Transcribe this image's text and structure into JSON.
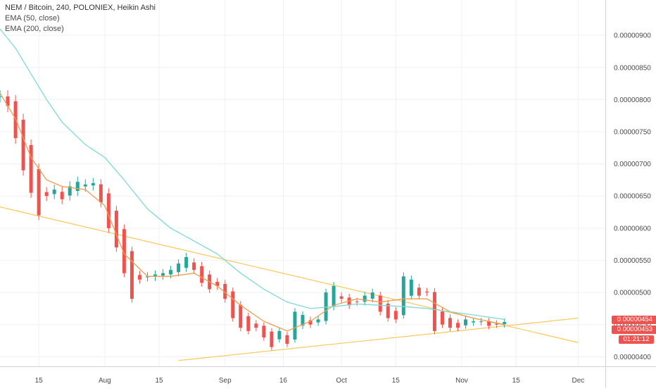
{
  "header": {
    "title": "NEM / Bitcoin, 240, POLONIEX, Heikin Ashi",
    "indicators": [
      "EMA (50, close)",
      "EMA (200, close)"
    ]
  },
  "price_badges": [
    {
      "label": "0.00000454",
      "color": "#ef5350"
    },
    {
      "label": "0.00000453",
      "color": "#ef5350"
    }
  ],
  "timer_label": "01:21:12",
  "colors": {
    "up": "#26a69a",
    "down": "#ef5350",
    "ema50": "#f39c4a",
    "ema200": "#7fd8d6",
    "trendline": "#ffc759",
    "grid": "#eef0f3",
    "axis_text": "#4a4a4a",
    "badge_red": "#ef5350"
  },
  "chart_data": {
    "type": "line",
    "title": "NEM / Bitcoin, 240, POLONIEX, Heikin Ashi",
    "xlabel": "",
    "ylabel": "",
    "x_tick_labels": [
      "15",
      "Aug",
      "15",
      "Sep",
      "16",
      "Oct",
      "15",
      "Nov",
      "15",
      "Dec"
    ],
    "x_tick_dates": [
      "2018-07-15",
      "2018-08-01",
      "2018-08-15",
      "2018-09-01",
      "2018-09-16",
      "2018-10-01",
      "2018-10-15",
      "2018-11-01",
      "2018-11-15",
      "2018-12-01"
    ],
    "x_range": [
      "2018-07-05",
      "2018-12-08"
    ],
    "y_tick_labels": [
      "0.00000400",
      "0.00000450",
      "0.00000500",
      "0.00000550",
      "0.00000600",
      "0.00000650",
      "0.00000700",
      "0.00000750",
      "0.00000800",
      "0.00000850",
      "0.00000900"
    ],
    "ylim": [
      3.85e-06,
      9.55e-06
    ],
    "grid": true,
    "candle_closes": {
      "x": [
        "2018-07-05",
        "2018-07-07",
        "2018-07-09",
        "2018-07-11",
        "2018-07-13",
        "2018-07-15",
        "2018-07-17",
        "2018-07-19",
        "2018-07-21",
        "2018-07-23",
        "2018-07-25",
        "2018-07-27",
        "2018-07-29",
        "2018-07-31",
        "2018-08-02",
        "2018-08-04",
        "2018-08-06",
        "2018-08-08",
        "2018-08-10",
        "2018-08-12",
        "2018-08-14",
        "2018-08-16",
        "2018-08-18",
        "2018-08-20",
        "2018-08-22",
        "2018-08-24",
        "2018-08-26",
        "2018-08-28",
        "2018-08-30",
        "2018-09-01",
        "2018-09-03",
        "2018-09-05",
        "2018-09-07",
        "2018-09-09",
        "2018-09-11",
        "2018-09-13",
        "2018-09-15",
        "2018-09-17",
        "2018-09-19",
        "2018-09-21",
        "2018-09-23",
        "2018-09-25",
        "2018-09-27",
        "2018-09-29",
        "2018-10-01",
        "2018-10-03",
        "2018-10-05",
        "2018-10-07",
        "2018-10-09",
        "2018-10-11",
        "2018-10-13",
        "2018-10-15",
        "2018-10-17",
        "2018-10-19",
        "2018-10-21",
        "2018-10-23",
        "2018-10-25",
        "2018-10-27",
        "2018-10-29",
        "2018-10-31",
        "2018-11-02",
        "2018-11-04",
        "2018-11-06",
        "2018-11-08",
        "2018-11-10",
        "2018-11-12"
      ],
      "values": [
        8.05e-06,
        7.9e-06,
        7.4e-06,
        6.9e-06,
        6.55e-06,
        6.2e-06,
        6.5e-06,
        6.6e-06,
        6.45e-06,
        6.65e-06,
        6.72e-06,
        6.68e-06,
        6.7e-06,
        6.4e-06,
        6e-06,
        5.7e-06,
        5.3e-06,
        4.9e-06,
        5.2e-06,
        5.25e-06,
        5.28e-06,
        5.3e-06,
        5.35e-06,
        5.45e-06,
        5.55e-06,
        5.35e-06,
        5.15e-06,
        5.05e-06,
        5.1e-06,
        4.9e-06,
        4.6e-06,
        4.45e-06,
        4.4e-06,
        4.45e-06,
        4.3e-06,
        4.15e-06,
        4.4e-06,
        4.2e-06,
        4.7e-06,
        4.65e-06,
        4.5e-06,
        4.58e-06,
        5e-06,
        5.1e-06,
        4.9e-06,
        4.8e-06,
        4.85e-06,
        4.95e-06,
        5e-06,
        4.7e-06,
        4.6e-06,
        4.58e-06,
        5.25e-06,
        5.2e-06,
        4.95e-06,
        5e-06,
        4.4e-06,
        4.5e-06,
        4.45e-06,
        4.45e-06,
        4.58e-06,
        4.55e-06,
        4.55e-06,
        4.48e-06,
        4.5e-06,
        4.54e-06
      ]
    },
    "series": [
      {
        "name": "EMA (50, close)",
        "x": [
          "2018-07-05",
          "2018-07-09",
          "2018-07-13",
          "2018-07-17",
          "2018-07-21",
          "2018-07-27",
          "2018-08-01",
          "2018-08-06",
          "2018-08-12",
          "2018-08-18",
          "2018-08-24",
          "2018-08-30",
          "2018-09-05",
          "2018-09-11",
          "2018-09-17",
          "2018-09-23",
          "2018-09-29",
          "2018-10-05",
          "2018-10-11",
          "2018-10-17",
          "2018-10-23",
          "2018-10-29",
          "2018-11-04",
          "2018-11-12"
        ],
        "values": [
          8.1e-06,
          7.7e-06,
          7.1e-06,
          6.75e-06,
          6.65e-06,
          6.6e-06,
          6.35e-06,
          5.6e-06,
          5.25e-06,
          5.25e-06,
          5.3e-06,
          5.1e-06,
          4.8e-06,
          4.55e-06,
          4.4e-06,
          4.55e-06,
          4.8e-06,
          4.9e-06,
          4.85e-06,
          4.9e-06,
          4.9e-06,
          4.7e-06,
          4.6e-06,
          4.5e-06
        ]
      },
      {
        "name": "EMA (200, close)",
        "x": [
          "2018-07-05",
          "2018-07-09",
          "2018-07-13",
          "2018-07-17",
          "2018-07-21",
          "2018-07-27",
          "2018-08-01",
          "2018-08-06",
          "2018-08-12",
          "2018-08-18",
          "2018-08-24",
          "2018-08-30",
          "2018-09-05",
          "2018-09-11",
          "2018-09-17",
          "2018-09-23",
          "2018-09-29",
          "2018-10-05",
          "2018-10-11",
          "2018-10-17",
          "2018-10-23",
          "2018-10-29",
          "2018-11-04",
          "2018-11-12"
        ],
        "values": [
          9.1e-06,
          8.8e-06,
          8.4e-06,
          8e-06,
          7.65e-06,
          7.3e-06,
          7.1e-06,
          6.75e-06,
          6.3e-06,
          6e-06,
          5.8e-06,
          5.6e-06,
          5.3e-06,
          5.05e-06,
          4.85e-06,
          4.75e-06,
          4.78e-06,
          4.82e-06,
          4.8e-06,
          4.78e-06,
          4.75e-06,
          4.7e-06,
          4.65e-06,
          4.58e-06
        ]
      }
    ],
    "trendlines": [
      {
        "x": [
          "2018-07-05",
          "2018-12-01"
        ],
        "values": [
          6.33e-06,
          4.22e-06
        ]
      },
      {
        "x": [
          "2018-08-20",
          "2018-12-01"
        ],
        "values": [
          3.94e-06,
          4.6e-06
        ]
      }
    ]
  }
}
